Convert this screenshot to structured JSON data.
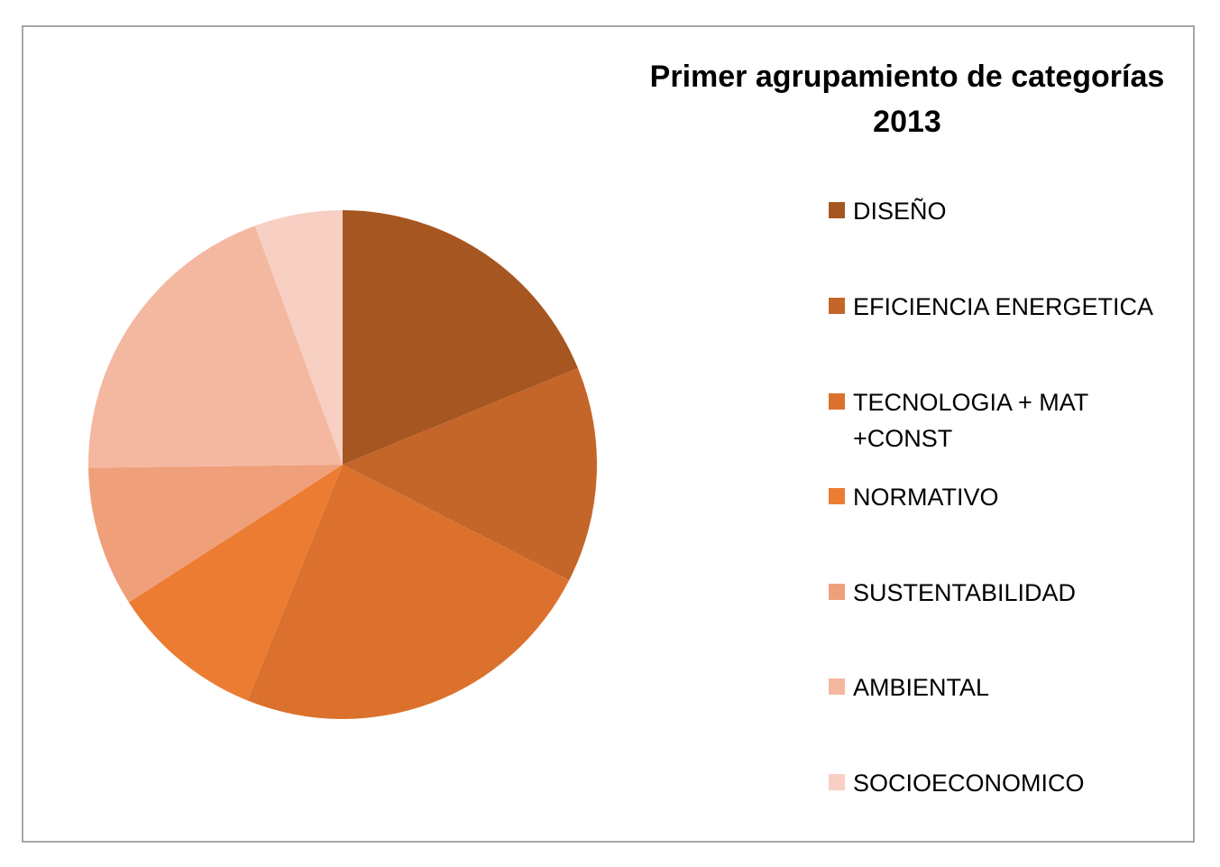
{
  "chart_data": {
    "type": "pie",
    "title": "Primer agrupamiento de categorías",
    "subtitle": "2013",
    "legend_position": "right",
    "categories": [
      "DISEÑO",
      "EFICIENCIA ENERGETICA",
      "TECNOLOGIA + MAT +CONST",
      "NORMATIVO",
      "SUSTENTABILIDAD",
      "AMBIENTAL",
      "SOCIOECONOMICO"
    ],
    "legend_lines": [
      [
        "DISEÑO"
      ],
      [
        "EFICIENCIA ENERGETICA"
      ],
      [
        "TECNOLOGIA + MAT",
        "+CONST"
      ],
      [
        "NORMATIVO"
      ],
      [
        "SUSTENTABILIDAD"
      ],
      [
        "AMBIENTAL"
      ],
      [
        "SOCIOECONOMICO"
      ]
    ],
    "values": [
      18.8,
      13.7,
      23.6,
      9.8,
      8.9,
      19.6,
      5.6
    ],
    "unit": "percent (estimated)",
    "colors": [
      "#A65620",
      "#C4652A",
      "#DB712D",
      "#EB7C32",
      "#EFA07B",
      "#F4B8A0",
      "#F8CFC3"
    ]
  }
}
